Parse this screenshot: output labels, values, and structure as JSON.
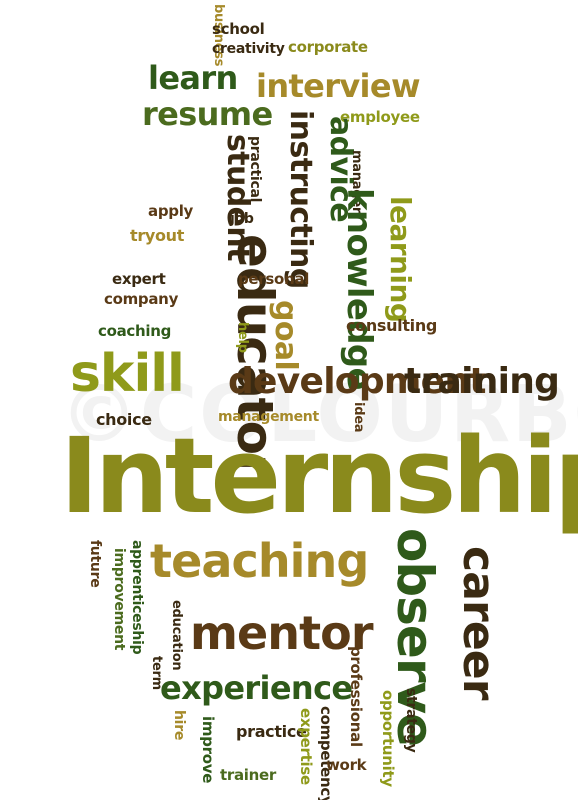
{
  "watermark": "©COLOURBOX",
  "palette": {
    "olive": "#8a8a1c",
    "darkgreen": "#2f5a1a",
    "green": "#4b6b1e",
    "brown": "#5a3a16",
    "darkbrown": "#3a2a12",
    "gold": "#a68a2a",
    "lime": "#8f9a1a"
  },
  "words": [
    {
      "id": "business",
      "text": "business"
    },
    {
      "id": "school",
      "text": "school"
    },
    {
      "id": "creativity",
      "text": "creativity"
    },
    {
      "id": "corporate",
      "text": "corporate"
    },
    {
      "id": "learn",
      "text": "learn"
    },
    {
      "id": "interview",
      "text": "interview"
    },
    {
      "id": "resume",
      "text": "resume"
    },
    {
      "id": "employee",
      "text": "employee"
    },
    {
      "id": "instructing",
      "text": "instructing"
    },
    {
      "id": "advice",
      "text": "advice"
    },
    {
      "id": "student",
      "text": "student"
    },
    {
      "id": "practical",
      "text": "practical"
    },
    {
      "id": "manager",
      "text": "manager"
    },
    {
      "id": "knowledge",
      "text": "knowledge"
    },
    {
      "id": "learning",
      "text": "learning"
    },
    {
      "id": "apply",
      "text": "apply"
    },
    {
      "id": "job",
      "text": "job"
    },
    {
      "id": "tryout",
      "text": "tryout"
    },
    {
      "id": "educator",
      "text": "educator"
    },
    {
      "id": "personal",
      "text": "personal"
    },
    {
      "id": "expert",
      "text": "expert"
    },
    {
      "id": "company",
      "text": "company"
    },
    {
      "id": "goal",
      "text": "goal"
    },
    {
      "id": "consulting",
      "text": "consulting"
    },
    {
      "id": "coaching",
      "text": "coaching"
    },
    {
      "id": "help",
      "text": "help"
    },
    {
      "id": "skill",
      "text": "skill"
    },
    {
      "id": "development",
      "text": "development"
    },
    {
      "id": "training",
      "text": "training"
    },
    {
      "id": "choice",
      "text": "choice"
    },
    {
      "id": "management",
      "text": "management"
    },
    {
      "id": "idea",
      "text": "idea"
    },
    {
      "id": "internship",
      "text": "Internship"
    },
    {
      "id": "future",
      "text": "future"
    },
    {
      "id": "apprenticeship",
      "text": "apprenticeship"
    },
    {
      "id": "improvement",
      "text": "improvement"
    },
    {
      "id": "teaching",
      "text": "teaching"
    },
    {
      "id": "observe",
      "text": "observe"
    },
    {
      "id": "career",
      "text": "career"
    },
    {
      "id": "education",
      "text": "education"
    },
    {
      "id": "mentor",
      "text": "mentor"
    },
    {
      "id": "term",
      "text": "term"
    },
    {
      "id": "experience",
      "text": "experience"
    },
    {
      "id": "professional",
      "text": "professional"
    },
    {
      "id": "opportunity",
      "text": "opportunity"
    },
    {
      "id": "strategy",
      "text": "strategy"
    },
    {
      "id": "hire",
      "text": "hire"
    },
    {
      "id": "improve",
      "text": "improve"
    },
    {
      "id": "practice",
      "text": "practice"
    },
    {
      "id": "expertise",
      "text": "expertise"
    },
    {
      "id": "competency",
      "text": "competency"
    },
    {
      "id": "work",
      "text": "work"
    },
    {
      "id": "trainer",
      "text": "trainer"
    }
  ]
}
